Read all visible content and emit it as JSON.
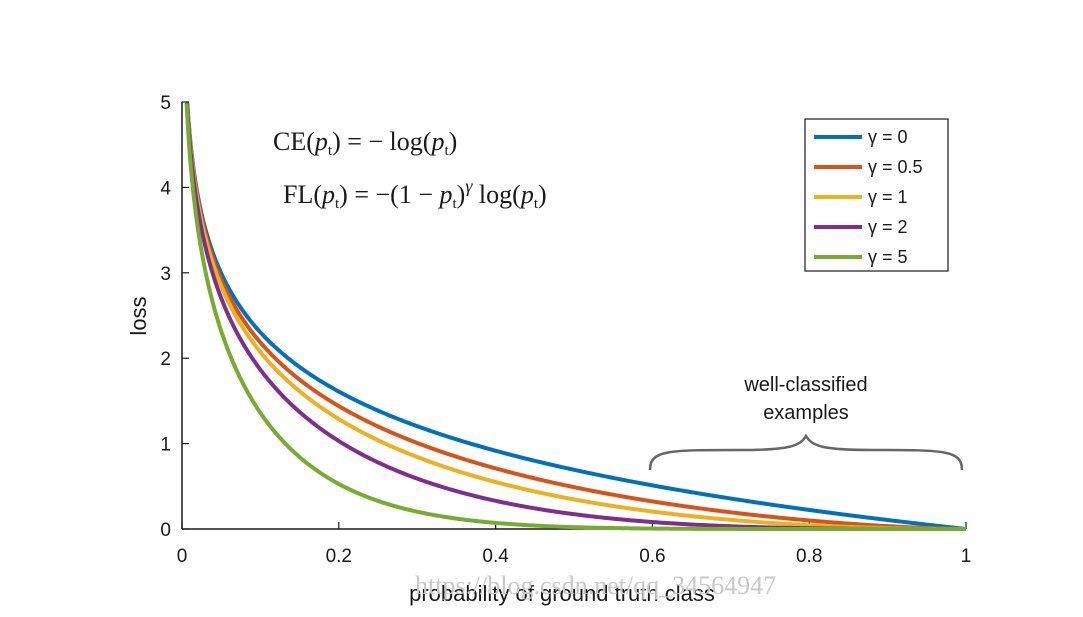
{
  "chart_data": {
    "type": "line",
    "title": "",
    "xlabel": "probability of ground truth class",
    "ylabel": "loss",
    "xlim": [
      0,
      1
    ],
    "ylim": [
      0,
      5
    ],
    "xticks": [
      0,
      0.2,
      0.4,
      0.6,
      0.8,
      1
    ],
    "xtick_labels": [
      "0",
      "0.2",
      "0.4",
      "0.6",
      "0.8",
      "1"
    ],
    "yticks": [
      0,
      1,
      2,
      3,
      4,
      5
    ],
    "ytick_labels": [
      "0",
      "1",
      "2",
      "3",
      "4",
      "5"
    ],
    "grid": false,
    "legend_position": "top-right",
    "series": [
      {
        "name": "γ = 0",
        "gamma": 0,
        "color": "#0072BD"
      },
      {
        "name": "γ = 0.5",
        "gamma": 0.5,
        "color": "#D95319"
      },
      {
        "name": "γ = 1",
        "gamma": 1,
        "color": "#EDB120"
      },
      {
        "name": "γ = 2",
        "gamma": 2,
        "color": "#7E2F8E"
      },
      {
        "name": "γ = 5",
        "gamma": 5,
        "color": "#77AC30"
      }
    ],
    "annotations": {
      "equation_ce": "CE(pt) = − log(pt)",
      "equation_fl": "FL(pt) = −(1 − pt)γ log(pt)",
      "bracket_label_line1": "well-classified",
      "bracket_label_line2": "examples",
      "bracket_range": [
        0.6,
        1.0
      ]
    },
    "watermark": "https://blog.csdn.net/qq_34564947"
  }
}
